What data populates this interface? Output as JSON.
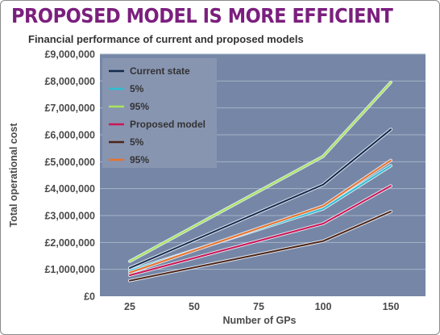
{
  "headline": "PROPOSED MODEL IS MORE EFFICIENT",
  "colors": {
    "plot_bg": "#7586a6",
    "gridline": "#a7b3c9",
    "headline": "#7b1f7e",
    "legend_bg": "#8895b1"
  },
  "chart_data": {
    "type": "line",
    "title": "Financial performance of current and proposed models",
    "xlabel": "Number of GPs",
    "ylabel": "Total operational cost",
    "categories": [
      "25",
      "50",
      "75",
      "100",
      "150"
    ],
    "x": [
      25,
      50,
      75,
      100,
      150
    ],
    "ylim": [
      0,
      9000000
    ],
    "yticks": [
      "£0",
      "£1,000,000",
      "£2,000,000",
      "£3,000,000",
      "£4,000,000",
      "£5,000,000",
      "£6,000,000",
      "£7,000,000",
      "£8,000,000",
      "£9,000,000"
    ],
    "grid": true,
    "legend_position": "top-left",
    "series": [
      {
        "name": "Current state",
        "color": "#14294d",
        "points": [
          [
            25,
            1050000
          ],
          [
            100,
            4150000
          ],
          [
            150,
            6200000
          ]
        ]
      },
      {
        "name": "5%",
        "color": "#2bc0d3",
        "points": [
          [
            25,
            950000
          ],
          [
            100,
            3250000
          ],
          [
            150,
            4850000
          ]
        ]
      },
      {
        "name": "95%",
        "color": "#a6e85a",
        "points": [
          [
            25,
            1300000
          ],
          [
            100,
            5200000
          ],
          [
            150,
            7950000
          ]
        ]
      },
      {
        "name": "Proposed model",
        "color": "#cc1657",
        "points": [
          [
            25,
            780000
          ],
          [
            100,
            2700000
          ],
          [
            150,
            4100000
          ]
        ]
      },
      {
        "name": "5%",
        "color": "#4d2416",
        "points": [
          [
            25,
            580000
          ],
          [
            100,
            2050000
          ],
          [
            150,
            3150000
          ]
        ]
      },
      {
        "name": "95%",
        "color": "#e8722a",
        "points": [
          [
            25,
            880000
          ],
          [
            100,
            3350000
          ],
          [
            150,
            5050000
          ]
        ]
      }
    ]
  }
}
